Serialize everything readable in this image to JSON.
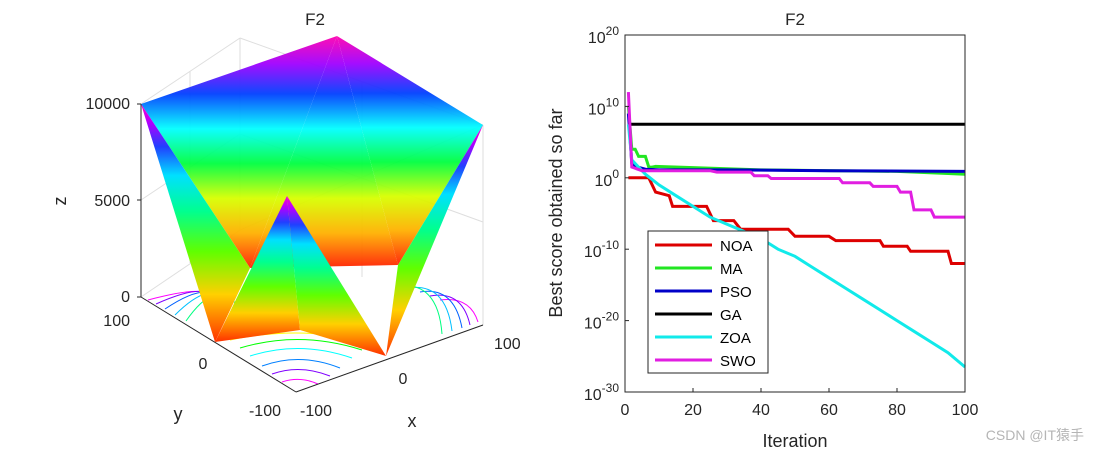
{
  "chart_data": [
    {
      "type": "surface3d",
      "title": "F2",
      "xlabel": "x",
      "ylabel": "y",
      "zlabel": "z",
      "xticks": [
        "-100",
        "0",
        "100"
      ],
      "yticks": [
        "-100",
        "0",
        "100"
      ],
      "zticks": [
        "0",
        "5000",
        "10000"
      ],
      "xlim": [
        -100,
        100
      ],
      "ylim": [
        -100,
        100
      ],
      "zlim": [
        0,
        10000
      ],
      "colormap": "hsv",
      "contours_on_floor": true
    },
    {
      "type": "line",
      "title": "F2",
      "xlabel": "Iteration",
      "ylabel": "Best score obtained so far",
      "xlim": [
        0,
        100
      ],
      "ylim_exponent": [
        -30,
        20
      ],
      "yscale": "log",
      "xticks": [
        "0",
        "20",
        "40",
        "60",
        "80",
        "100"
      ],
      "yticks": [
        {
          "base": "10",
          "exp": "20",
          "value": 20
        },
        {
          "base": "10",
          "exp": "10",
          "value": 10
        },
        {
          "base": "10",
          "exp": "0",
          "value": 0
        },
        {
          "base": "10",
          "exp": "-10",
          "value": -10
        },
        {
          "base": "10",
          "exp": "-20",
          "value": -20
        },
        {
          "base": "10",
          "exp": "-30",
          "value": -30
        }
      ],
      "legend_position": "lower-left",
      "series": [
        {
          "name": "NOA",
          "color": "#dd0000",
          "points": [
            [
              1,
              0
            ],
            [
              7,
              0
            ],
            [
              9,
              -2
            ],
            [
              13,
              -2.5
            ],
            [
              14,
              -4
            ],
            [
              24,
              -4
            ],
            [
              26,
              -6
            ],
            [
              32,
              -6
            ],
            [
              34,
              -7.2
            ],
            [
              48,
              -7.2
            ],
            [
              50,
              -8.2
            ],
            [
              60,
              -8.2
            ],
            [
              62,
              -8.8
            ],
            [
              75,
              -8.8
            ],
            [
              76,
              -9.6
            ],
            [
              83,
              -9.6
            ],
            [
              84,
              -10.3
            ],
            [
              95,
              -10.3
            ],
            [
              96,
              -12
            ],
            [
              100,
              -12
            ]
          ]
        },
        {
          "name": "MA",
          "color": "#22e622",
          "points": [
            [
              1,
              10
            ],
            [
              2,
              4
            ],
            [
              3,
              4
            ],
            [
              4,
              3
            ],
            [
              6,
              3
            ],
            [
              7,
              1.5
            ],
            [
              8,
              1.5
            ],
            [
              9,
              1.6
            ],
            [
              40,
              1.1
            ],
            [
              80,
              0.9
            ],
            [
              95,
              0.6
            ],
            [
              100,
              0.5
            ]
          ]
        },
        {
          "name": "PSO",
          "color": "#0000c8",
          "points": [
            [
              1,
              9
            ],
            [
              2,
              2
            ],
            [
              3,
              1.6
            ],
            [
              6,
              1.2
            ],
            [
              10,
              1.1
            ],
            [
              30,
              1.1
            ],
            [
              60,
              1.0
            ],
            [
              100,
              0.9
            ]
          ]
        },
        {
          "name": "GA",
          "color": "#000000",
          "points": [
            [
              1,
              7.5
            ],
            [
              100,
              7.5
            ]
          ]
        },
        {
          "name": "ZOA",
          "color": "#11eaea",
          "points": [
            [
              1,
              7.5
            ],
            [
              2,
              2.5
            ],
            [
              4,
              1.5
            ],
            [
              6,
              0.5
            ],
            [
              10,
              -1
            ],
            [
              15,
              -2.5
            ],
            [
              20,
              -4
            ],
            [
              25,
              -5.5
            ],
            [
              30,
              -6.5
            ],
            [
              35,
              -7.5
            ],
            [
              40,
              -8.5
            ],
            [
              45,
              -10
            ],
            [
              50,
              -11
            ],
            [
              55,
              -12.5
            ],
            [
              60,
              -14
            ],
            [
              65,
              -15.5
            ],
            [
              70,
              -17
            ],
            [
              75,
              -18.5
            ],
            [
              80,
              -20
            ],
            [
              85,
              -21.5
            ],
            [
              90,
              -23
            ],
            [
              95,
              -24.5
            ],
            [
              100,
              -26.5
            ]
          ]
        },
        {
          "name": "SWO",
          "color": "#e11ee1",
          "points": [
            [
              1,
              12
            ],
            [
              2,
              1.5
            ],
            [
              5,
              1
            ],
            [
              25,
              1
            ],
            [
              27,
              0.8
            ],
            [
              37,
              0.8
            ],
            [
              38,
              0.3
            ],
            [
              42,
              0.3
            ],
            [
              43,
              -0.1
            ],
            [
              63,
              -0.1
            ],
            [
              64,
              -0.7
            ],
            [
              72,
              -0.7
            ],
            [
              73,
              -1.2
            ],
            [
              80,
              -1.2
            ],
            [
              81,
              -2
            ],
            [
              84,
              -2
            ],
            [
              85,
              -4.5
            ],
            [
              90,
              -4.5
            ],
            [
              91,
              -5.5
            ],
            [
              100,
              -5.5
            ]
          ]
        }
      ]
    }
  ],
  "watermark": "CSDN @IT猿手"
}
